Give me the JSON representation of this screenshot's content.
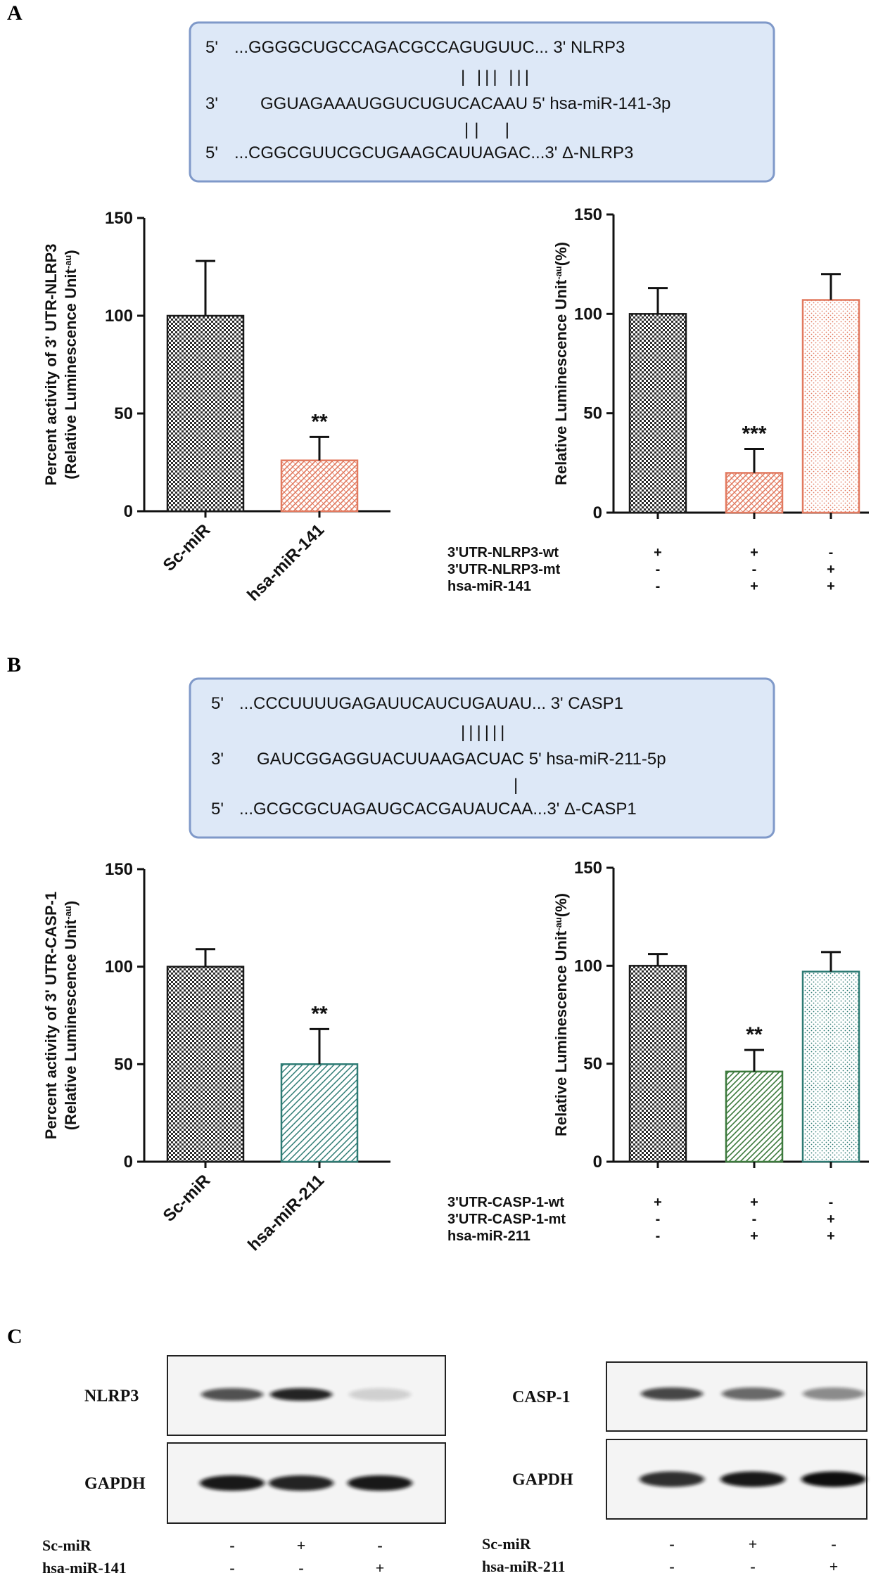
{
  "panels": {
    "a": "A",
    "b": "B",
    "c": "C"
  },
  "colors": {
    "black": "#1a1a1a",
    "salmon": "#e27a60",
    "teal": "#2e7b74",
    "green": "#3d7a3d",
    "box_fill": "#dde8f7",
    "box_stroke": "#7f99c9"
  },
  "seqbox_a": {
    "rows": [
      {
        "prime": "5'",
        "seq": "...GGGGCUGCCAGACGCCAGUGUUC... 3' NLRP3"
      },
      {
        "prime": "3'",
        "seq": "GGUAGAAAUGGUCUGUCACAAU 5' hsa-miR-141-3p"
      },
      {
        "prime": "5'",
        "seq": "...CGGCGUUCGCUGAAGCAUUAGAC...3' Δ-NLRP3"
      }
    ],
    "pair1": "| ||| |||",
    "pair2": "||  |"
  },
  "seqbox_b": {
    "rows": [
      {
        "prime": "5'",
        "seq": "...CCCUUUUGAGAUUCAUCUGAUAU... 3' CASP1"
      },
      {
        "prime": "3'",
        "seq": "GAUCGGAGGUACUUAAGACUAC 5' hsa-miR-211-5p"
      },
      {
        "prime": "5'",
        "seq": "...GCGCGCUAGAUGCACGAUAUCAA...3' Δ-CASP1"
      }
    ],
    "pair1": "||||||",
    "pair2": "|"
  },
  "chart_data": [
    {
      "id": "A-left",
      "type": "bar",
      "ylabel_line1": "Percent activity of 3' UTR-NLRP3",
      "ylabel_line2": "(Relative Luminescence Unit",
      "ylabel_sup": "-au",
      "ylabel_close": ")",
      "yticks": [
        "0",
        "50",
        "100",
        "150"
      ],
      "ylim": [
        0,
        150
      ],
      "categories": [
        "Sc-miR",
        "hsa-miR-141"
      ],
      "values": [
        100,
        26
      ],
      "errors": [
        28,
        12
      ],
      "significance": [
        "",
        "**"
      ]
    },
    {
      "id": "A-right",
      "type": "bar",
      "ylabel_line1": "Relative Luminescence Unit",
      "ylabel_sup": "-au",
      "ylabel_close": "(%)",
      "yticks": [
        "0",
        "50",
        "100",
        "150"
      ],
      "ylim": [
        0,
        150
      ],
      "values": [
        100,
        20,
        107
      ],
      "errors": [
        13,
        12,
        13
      ],
      "significance": [
        "",
        "***",
        ""
      ],
      "conditions": [
        {
          "label": "3'UTR-NLRP3-wt",
          "marks": [
            "+",
            "+",
            "-"
          ]
        },
        {
          "label": "3'UTR-NLRP3-mt",
          "marks": [
            "-",
            "-",
            "+"
          ]
        },
        {
          "label": "hsa-miR-141",
          "marks": [
            "-",
            "+",
            "+"
          ]
        }
      ]
    },
    {
      "id": "B-left",
      "type": "bar",
      "ylabel_line1": "Percent activity of 3' UTR-CASP-1",
      "ylabel_line2": "(Relative Luminescence Unit",
      "ylabel_sup": "-au",
      "ylabel_close": ")",
      "yticks": [
        "0",
        "50",
        "100",
        "150"
      ],
      "ylim": [
        0,
        150
      ],
      "categories": [
        "Sc-miR",
        "hsa-miR-211"
      ],
      "values": [
        100,
        50
      ],
      "errors": [
        9,
        18
      ],
      "significance": [
        "",
        "**"
      ]
    },
    {
      "id": "B-right",
      "type": "bar",
      "ylabel_line1": "Relative Luminescence Unit",
      "ylabel_sup": "-au",
      "ylabel_close": "(%)",
      "yticks": [
        "0",
        "50",
        "100",
        "150"
      ],
      "ylim": [
        0,
        150
      ],
      "values": [
        100,
        46
      ],
      "errors": [
        6,
        11
      ],
      "values3": 97,
      "errors3": 10,
      "significance": [
        "",
        "**",
        ""
      ],
      "conditions": [
        {
          "label": "3'UTR-CASP-1-wt",
          "marks": [
            "+",
            "+",
            "-"
          ]
        },
        {
          "label": "3'UTR-CASP-1-mt",
          "marks": [
            "-",
            "-",
            "+"
          ]
        },
        {
          "label": "hsa-miR-211",
          "marks": [
            "-",
            "+",
            "+"
          ]
        }
      ]
    }
  ],
  "blots": {
    "left": {
      "top_label": "NLRP3",
      "bottom_label": "GAPDH",
      "top_intensity": [
        0.7,
        0.9,
        0.15
      ],
      "bottom_intensity": [
        0.95,
        0.9,
        0.95
      ],
      "conditions": [
        {
          "label": "Sc-miR",
          "marks": [
            "-",
            "+",
            "-"
          ]
        },
        {
          "label": "hsa-miR-141",
          "marks": [
            "-",
            "-",
            "+"
          ]
        }
      ]
    },
    "right": {
      "top_label": "CASP-1",
      "bottom_label": "GAPDH",
      "top_intensity": [
        0.75,
        0.6,
        0.45
      ],
      "bottom_intensity": [
        0.85,
        0.95,
        1.0
      ],
      "conditions": [
        {
          "label": "Sc-miR",
          "marks": [
            "-",
            "+",
            "-"
          ]
        },
        {
          "label": "hsa-miR-211",
          "marks": [
            "-",
            "-",
            "+"
          ]
        }
      ]
    }
  }
}
